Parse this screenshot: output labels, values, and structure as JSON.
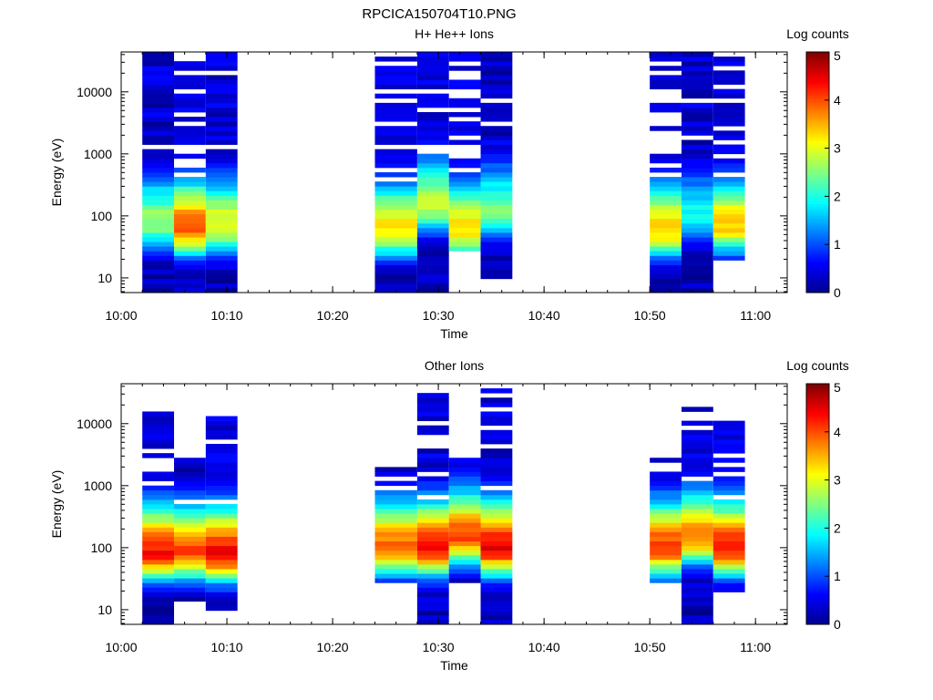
{
  "figure_title": "RPCICA150704T10.PNG",
  "colormap": [
    "#00008f",
    "#0000ff",
    "#0080ff",
    "#00ffff",
    "#80ff80",
    "#ffff00",
    "#ff8000",
    "#ff0000",
    "#800000"
  ],
  "chart_data": [
    {
      "type": "heatmap",
      "title": "H+ He++ Ions",
      "xlabel": "Time",
      "ylabel": "Energy (eV)",
      "y_scale": "log",
      "x_range": [
        "10:00",
        "11:03"
      ],
      "y_range": [
        5.8,
        44000
      ],
      "x_ticks": [
        "10:00",
        "10:10",
        "10:20",
        "10:30",
        "10:40",
        "10:50",
        "11:00"
      ],
      "y_ticks": [
        "10",
        "100",
        "1000",
        "10000"
      ],
      "colorbar": {
        "label": "Log counts",
        "range": [
          0,
          5
        ],
        "ticks": [
          "0",
          "1",
          "2",
          "3",
          "4",
          "5"
        ]
      },
      "columns": [
        {
          "start": "10:02",
          "end": "10:05",
          "energy_min": 5.8,
          "energy_max": 44000,
          "peak_energy": 80,
          "peak": 2.6,
          "dropout": 0.05
        },
        {
          "start": "10:05",
          "end": "10:08",
          "energy_min": 5.8,
          "energy_max": 44000,
          "peak_energy": 65,
          "peak": 4.0,
          "dropout": 0.45
        },
        {
          "start": "10:08",
          "end": "10:11",
          "energy_min": 5.8,
          "energy_max": 44000,
          "peak_energy": 70,
          "peak": 3.1,
          "dropout": 0.1
        },
        {
          "start": "10:24",
          "end": "10:28",
          "energy_min": 5.8,
          "energy_max": 44000,
          "peak_energy": 60,
          "peak": 3.3,
          "dropout": 0.4
        },
        {
          "start": "10:28",
          "end": "10:31",
          "energy_min": 5.8,
          "energy_max": 44000,
          "peak_energy": 150,
          "peak": 2.9,
          "dropout": 0.3
        },
        {
          "start": "10:31",
          "end": "10:34",
          "energy_min": 25,
          "energy_max": 44000,
          "peak_energy": 60,
          "peak": 3.3,
          "dropout": 0.4
        },
        {
          "start": "10:34",
          "end": "10:37",
          "energy_min": 9.5,
          "energy_max": 44000,
          "peak_energy": 120,
          "peak": 2.4,
          "dropout": 0.1
        },
        {
          "start": "10:50",
          "end": "10:53",
          "energy_min": 5.8,
          "energy_max": 44000,
          "peak_energy": 60,
          "peak": 3.4,
          "dropout": 0.35
        },
        {
          "start": "10:53",
          "end": "10:56",
          "energy_min": 5.8,
          "energy_max": 44000,
          "peak_energy": 100,
          "peak": 1.9,
          "dropout": 0.05
        },
        {
          "start": "10:56",
          "end": "10:59",
          "energy_min": 21,
          "energy_max": 44000,
          "peak_energy": 70,
          "peak": 3.4,
          "dropout": 0.35
        }
      ]
    },
    {
      "type": "heatmap",
      "title": "Other Ions",
      "xlabel": "Time",
      "ylabel": "Energy (eV)",
      "y_scale": "log",
      "x_range": [
        "10:00",
        "11:03"
      ],
      "y_range": [
        5.8,
        44000
      ],
      "x_ticks": [
        "10:00",
        "10:10",
        "10:20",
        "10:30",
        "10:40",
        "10:50",
        "11:00"
      ],
      "y_ticks": [
        "10",
        "100",
        "1000",
        "10000"
      ],
      "colorbar": {
        "label": "Log counts",
        "range": [
          0,
          5
        ],
        "ticks": [
          "0",
          "1",
          "2",
          "3",
          "4",
          "5"
        ]
      },
      "columns": [
        {
          "start": "10:02",
          "end": "10:05",
          "energy_min": 5.8,
          "energy_max": 17000,
          "peak_energy": 85,
          "peak": 4.3,
          "dropout": 0.2
        },
        {
          "start": "10:05",
          "end": "10:08",
          "energy_min": 14,
          "energy_max": 2900,
          "peak_energy": 85,
          "peak": 4.0,
          "dropout": 0.1
        },
        {
          "start": "10:08",
          "end": "10:11",
          "energy_min": 9.5,
          "energy_max": 17000,
          "peak_energy": 80,
          "peak": 4.4,
          "dropout": 0.2
        },
        {
          "start": "10:24",
          "end": "10:28",
          "energy_min": 25,
          "energy_max": 1900,
          "peak_energy": 100,
          "peak": 3.9,
          "dropout": 0.1
        },
        {
          "start": "10:28",
          "end": "10:31",
          "energy_min": 5.8,
          "energy_max": 31000,
          "peak_energy": 100,
          "peak": 4.4,
          "dropout": 0.2
        },
        {
          "start": "10:31",
          "end": "10:34",
          "energy_min": 25,
          "energy_max": 2900,
          "peak_energy": 150,
          "peak": 4.0,
          "dropout": 0.3
        },
        {
          "start": "10:34",
          "end": "10:37",
          "energy_min": 5.8,
          "energy_max": 40000,
          "peak_energy": 100,
          "peak": 4.5,
          "dropout": 0.2
        },
        {
          "start": "10:50",
          "end": "10:53",
          "energy_min": 25,
          "energy_max": 2900,
          "peak_energy": 100,
          "peak": 4.1,
          "dropout": 0.2
        },
        {
          "start": "10:53",
          "end": "10:56",
          "energy_min": 5.8,
          "energy_max": 19000,
          "peak_energy": 150,
          "peak": 3.7,
          "dropout": 0.3
        },
        {
          "start": "10:56",
          "end": "10:59",
          "energy_min": 21,
          "energy_max": 13000,
          "peak_energy": 100,
          "peak": 4.3,
          "dropout": 0.3
        }
      ]
    }
  ]
}
